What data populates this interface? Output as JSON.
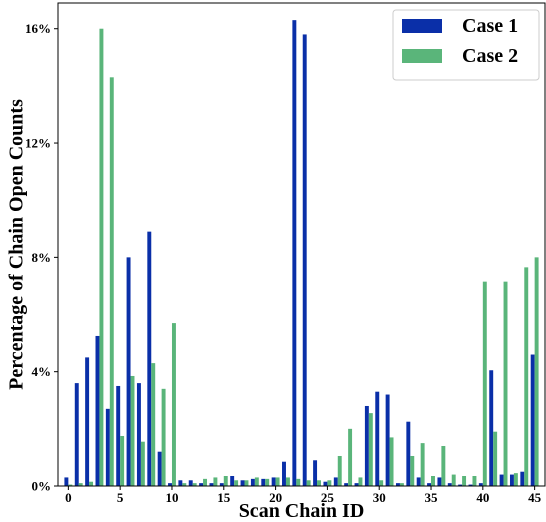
{
  "chart_data": {
    "type": "bar",
    "xlabel": "Scan Chain ID",
    "ylabel": "Percentage of Chain Open Counts",
    "xlim": [
      -1,
      46
    ],
    "ylim": [
      0,
      16.9
    ],
    "xticks": [
      0,
      5,
      10,
      15,
      20,
      25,
      30,
      35,
      40,
      45
    ],
    "xtick_labels": [
      "0",
      "5",
      "10",
      "15",
      "20",
      "25",
      "30",
      "35",
      "40",
      "45"
    ],
    "yticks": [
      0,
      4,
      8,
      12,
      16
    ],
    "ytick_labels": [
      "0%",
      "4%",
      "8%",
      "12%",
      "16%"
    ],
    "grid": false,
    "legend_position": "top-right",
    "x": [
      0,
      1,
      2,
      3,
      4,
      5,
      6,
      7,
      8,
      9,
      10,
      11,
      12,
      13,
      14,
      15,
      16,
      17,
      18,
      19,
      20,
      21,
      22,
      23,
      24,
      25,
      26,
      27,
      28,
      29,
      30,
      31,
      32,
      33,
      34,
      35,
      36,
      37,
      38,
      39,
      40,
      41,
      42,
      43,
      44,
      45
    ],
    "series": [
      {
        "name": "Case 1",
        "color": "#0a2fa8",
        "values": [
          0.3,
          3.6,
          4.5,
          5.25,
          2.7,
          3.5,
          8.0,
          3.6,
          8.9,
          1.2,
          0.1,
          0.2,
          0.2,
          0.1,
          0.1,
          0.1,
          0.35,
          0.2,
          0.25,
          0.25,
          0.3,
          0.85,
          16.3,
          15.8,
          0.9,
          0.15,
          0.3,
          0.1,
          0.1,
          2.8,
          3.3,
          3.2,
          0.1,
          2.25,
          0.3,
          0.1,
          0.3,
          0.1,
          0.05,
          0.05,
          0.1,
          4.05,
          0.4,
          0.4,
          0.5,
          4.6
        ]
      },
      {
        "name": "Case 2",
        "color": "#5ab57a",
        "values": [
          0.05,
          0.1,
          0.15,
          16.0,
          14.3,
          1.75,
          3.85,
          1.55,
          4.3,
          3.4,
          5.7,
          0.1,
          0.1,
          0.25,
          0.3,
          0.35,
          0.2,
          0.2,
          0.3,
          0.25,
          0.3,
          0.3,
          0.25,
          0.2,
          0.2,
          0.2,
          1.05,
          2.0,
          0.3,
          2.55,
          0.2,
          1.7,
          0.1,
          1.05,
          1.5,
          0.35,
          1.4,
          0.4,
          0.35,
          0.35,
          7.15,
          1.9,
          7.15,
          0.45,
          7.65,
          8.0
        ]
      }
    ]
  }
}
